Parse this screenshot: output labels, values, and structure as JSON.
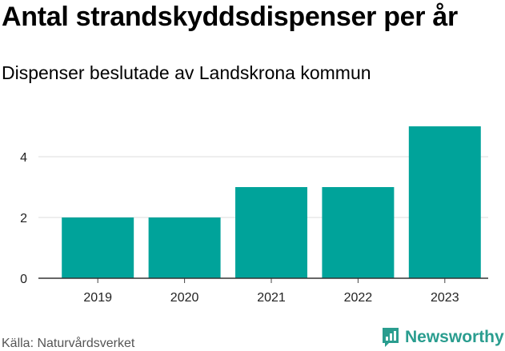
{
  "chart_data": {
    "type": "bar",
    "title": "Antal strandskyddsdispenser per år",
    "subtitle": "Dispenser beslutade av Landskrona kommun",
    "categories": [
      "2019",
      "2020",
      "2021",
      "2022",
      "2023"
    ],
    "values": [
      2,
      2,
      3,
      3,
      5
    ],
    "xlabel": "",
    "ylabel": "",
    "ylim": [
      0,
      5
    ],
    "yticks": [
      "0",
      "2",
      "4"
    ],
    "grid": true,
    "bar_color": "#00a39a"
  },
  "footer": {
    "source": "Källa: Naturvårdsverket",
    "brand": "Newsworthy",
    "brand_color": "#2a9d8f"
  }
}
